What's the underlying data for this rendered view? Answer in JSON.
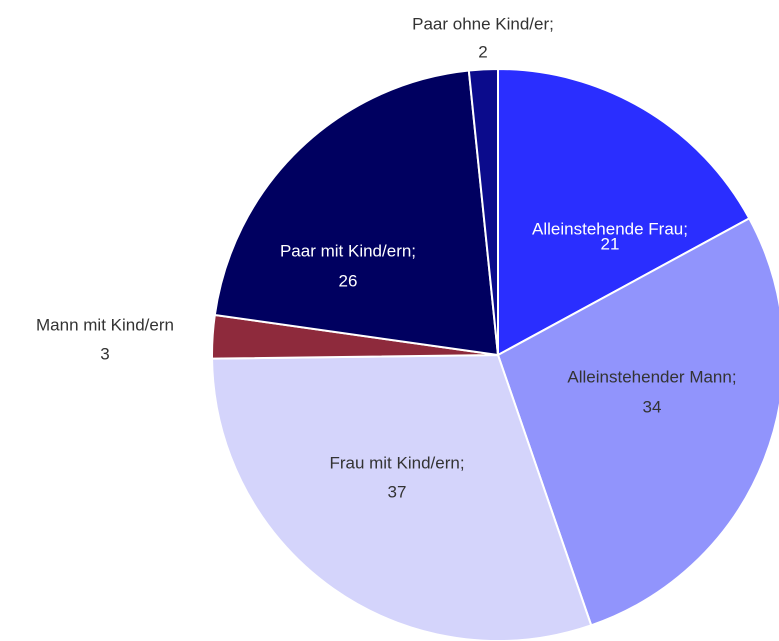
{
  "chart_data": {
    "type": "pie",
    "categories": [
      "Alleinstehende Frau;",
      "Alleinstehender Mann;",
      "Frau mit Kind/ern;",
      "Mann mit Kind/ern",
      "Paar mit Kind/ern;",
      "Paar ohne Kind/er;"
    ],
    "values": [
      21,
      34,
      37,
      3,
      26,
      2
    ],
    "colors": [
      "#2a2eff",
      "#9194fc",
      "#d4d4fb",
      "#8e2a3c",
      "#000060",
      "#0b0b8c"
    ]
  }
}
